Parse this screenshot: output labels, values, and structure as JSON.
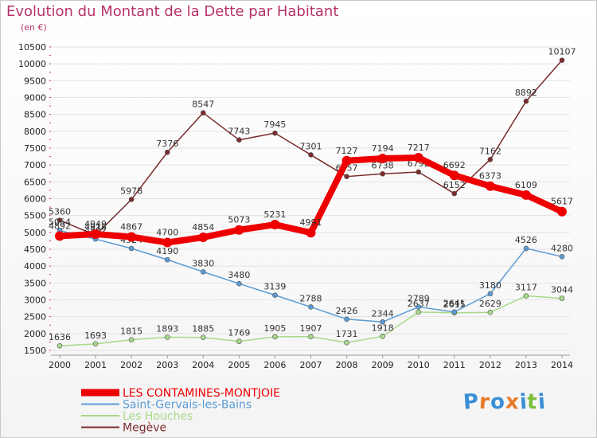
{
  "title": "Evolution du Montant de la Dette par Habitant",
  "unit": "(en €)",
  "logo": [
    "P",
    "r",
    "o",
    "x",
    "i",
    "t",
    "i"
  ],
  "logo_colors": [
    "#3a8fd8",
    "#e8792a",
    "#3a8fd8",
    "#e8792a",
    "#3a8fd8",
    "#7bbf3a",
    "#3a8fd8"
  ],
  "chart_data": {
    "type": "line",
    "title": "Evolution du Montant de la Dette par Habitant",
    "ylabel": "(en €)",
    "xlabel": "",
    "x": [
      "2000",
      "2001",
      "2002",
      "2003",
      "2004",
      "2005",
      "2006",
      "2007",
      "2008",
      "2009",
      "2010",
      "2011",
      "2012",
      "2013",
      "2014"
    ],
    "ylim": [
      1500,
      10500
    ],
    "yticks": [
      1500,
      2000,
      2500,
      3000,
      3500,
      4000,
      4500,
      5000,
      5500,
      6000,
      6500,
      7000,
      7500,
      8000,
      8500,
      9000,
      9500,
      10000,
      10500
    ],
    "grid": "horizontal",
    "legend_position": "bottom-left",
    "series": [
      {
        "name": "Megève",
        "color": "#7b2b2b",
        "width": 1.5,
        "values": [
          5360,
          4918,
          5978,
          7376,
          8547,
          7743,
          7945,
          7301,
          6657,
          6738,
          6792,
          6152,
          7162,
          8892,
          10107
        ]
      },
      {
        "name": "Les Houches",
        "color": "#a7d98a",
        "width": 1.5,
        "values": [
          1636,
          1693,
          1815,
          1893,
          1885,
          1769,
          1905,
          1907,
          1731,
          1918,
          2637,
          2615,
          2629,
          3117,
          3044
        ]
      },
      {
        "name": "Saint-Gervais-les-Bains",
        "color": "#5b9bd5",
        "width": 1.5,
        "values": [
          5054,
          4802,
          4524,
          4190,
          3830,
          3480,
          3139,
          2788,
          2426,
          2344,
          2789,
          2641,
          3180,
          4526,
          4280
        ]
      },
      {
        "name": "LES CONTAMINES-MONTJOIE",
        "color": "#ee0000",
        "width": 8,
        "values": [
          4892,
          4949,
          4867,
          4700,
          4854,
          5073,
          5231,
          4991,
          7127,
          7194,
          7217,
          6692,
          6373,
          6109,
          5617
        ]
      }
    ],
    "legend_order": [
      "LES CONTAMINES-MONTJOIE",
      "Saint-Gervais-les-Bains",
      "Les Houches",
      "Megève"
    ]
  }
}
